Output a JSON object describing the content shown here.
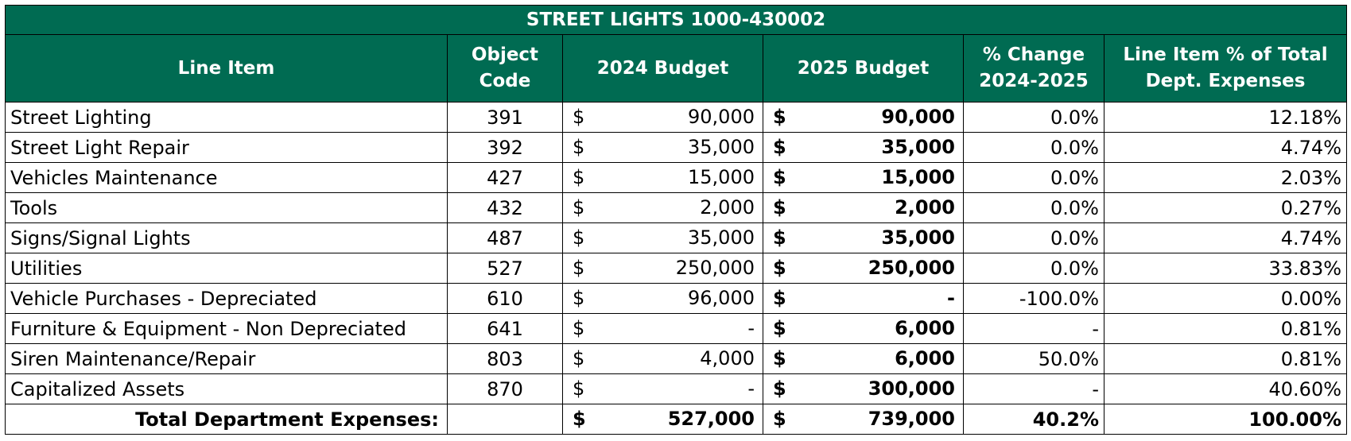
{
  "table": {
    "title": "STREET LIGHTS 1000-430002",
    "headers": {
      "line_item": "Line Item",
      "object_code": "Object\nCode",
      "budget_2024": "2024 Budget",
      "budget_2025": "2025 Budget",
      "pct_change": "% Change\n2024-2025",
      "pct_total": "Line Item % of Total\nDept. Expenses"
    },
    "currency_symbol": "$",
    "rows": [
      {
        "line_item": "Street Lighting",
        "code": "391",
        "b2024": "90,000",
        "b2025": "90,000",
        "change": "0.0%",
        "share": "12.18%"
      },
      {
        "line_item": "Street Light Repair",
        "code": "392",
        "b2024": "35,000",
        "b2025": "35,000",
        "change": "0.0%",
        "share": "4.74%"
      },
      {
        "line_item": "Vehicles Maintenance",
        "code": "427",
        "b2024": "15,000",
        "b2025": "15,000",
        "change": "0.0%",
        "share": "2.03%"
      },
      {
        "line_item": "Tools",
        "code": "432",
        "b2024": "2,000",
        "b2025": "2,000",
        "change": "0.0%",
        "share": "0.27%"
      },
      {
        "line_item": "Signs/Signal Lights",
        "code": "487",
        "b2024": "35,000",
        "b2025": "35,000",
        "change": "0.0%",
        "share": "4.74%"
      },
      {
        "line_item": "Utilities",
        "code": "527",
        "b2024": "250,000",
        "b2025": "250,000",
        "change": "0.0%",
        "share": "33.83%"
      },
      {
        "line_item": "Vehicle Purchases - Depreciated",
        "code": "610",
        "b2024": "96,000",
        "b2025": "-",
        "change": "-100.0%",
        "share": "0.00%"
      },
      {
        "line_item": "Furniture & Equipment - Non Depreciated",
        "code": "641",
        "b2024": "-",
        "b2025": "6,000",
        "change": "-",
        "share": "0.81%"
      },
      {
        "line_item": "Siren Maintenance/Repair",
        "code": "803",
        "b2024": "4,000",
        "b2025": "6,000",
        "change": "50.0%",
        "share": "0.81%"
      },
      {
        "line_item": "Capitalized Assets",
        "code": "870",
        "b2024": "-",
        "b2025": "300,000",
        "change": "-",
        "share": "40.60%"
      }
    ],
    "total": {
      "label": "Total Department Expenses:",
      "code": "",
      "b2024": "527,000",
      "b2025": "739,000",
      "change": "40.2%",
      "share": "100.00%"
    },
    "colors": {
      "header_bg": "#006b52",
      "header_text": "#ffffff"
    }
  }
}
